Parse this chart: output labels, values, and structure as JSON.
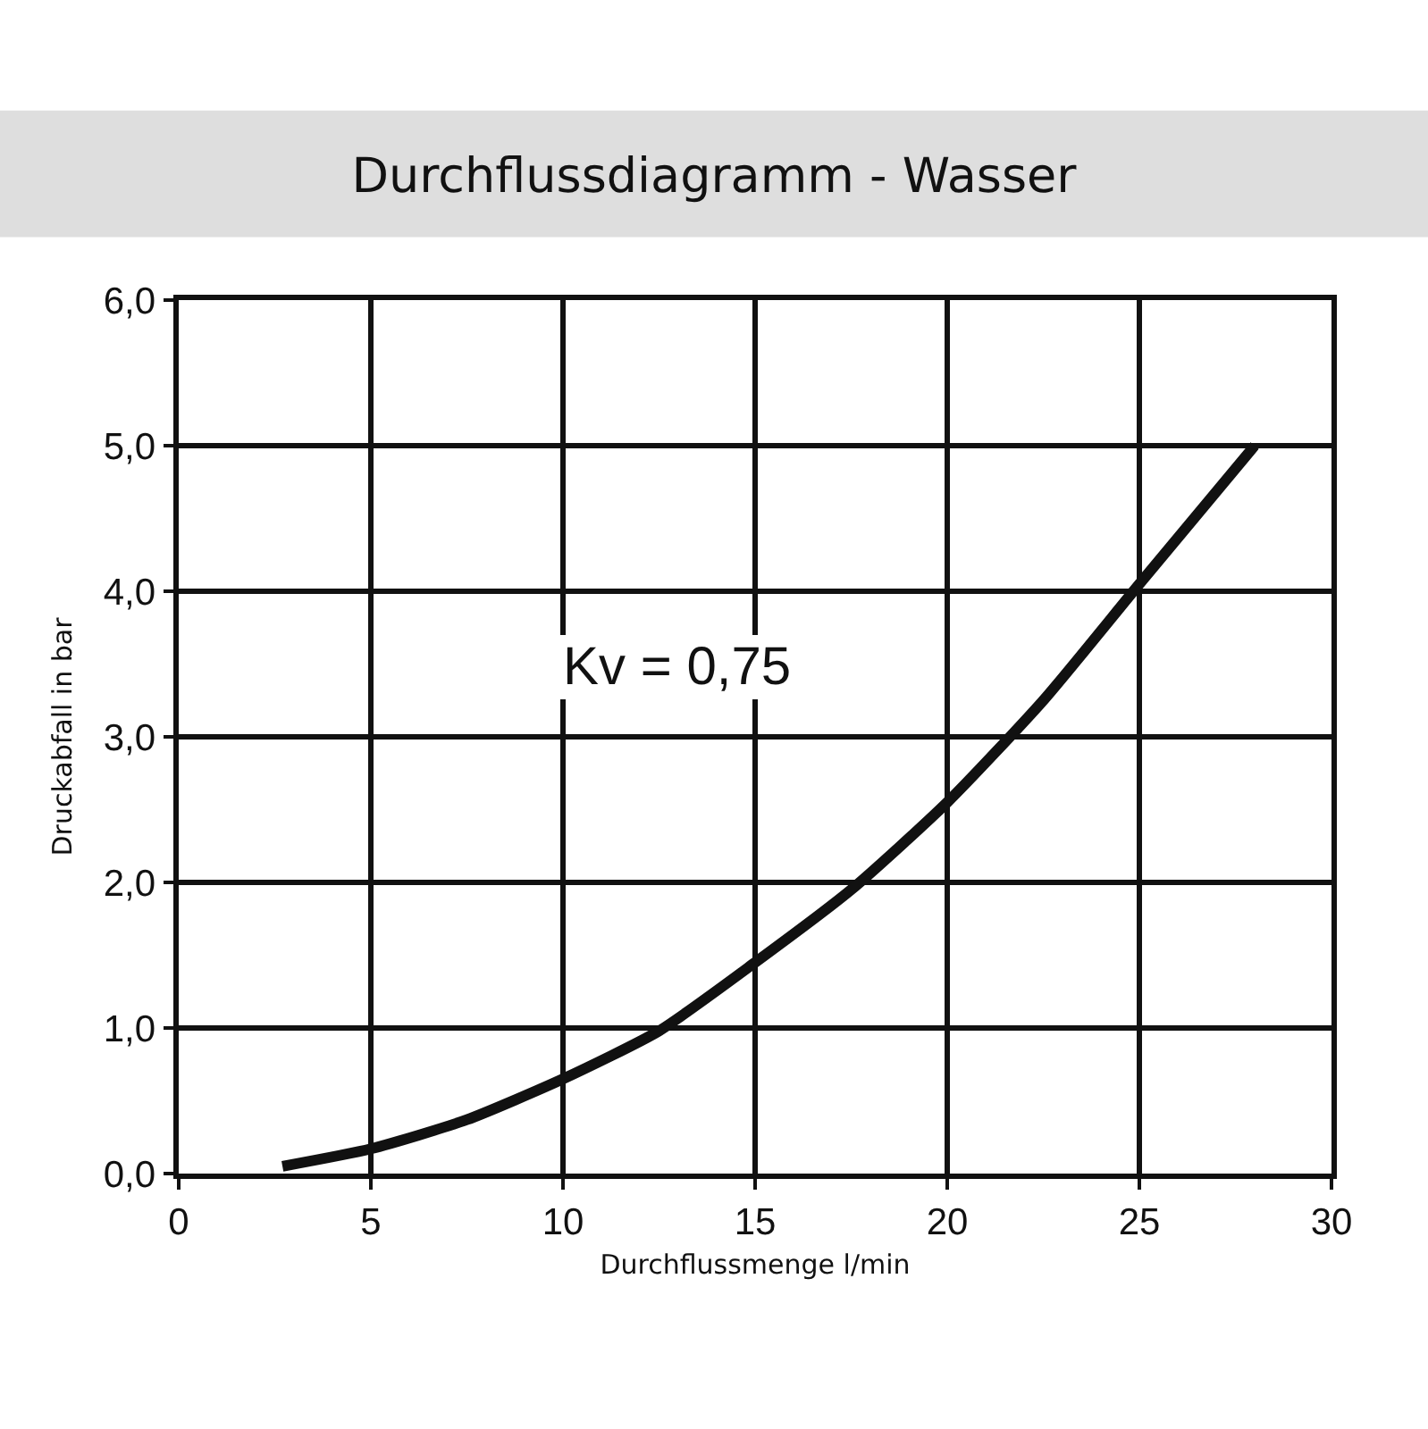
{
  "chart_data": {
    "type": "line",
    "title": "Durchflussdiagramm - Wasser",
    "xlabel": "Durchflussmenge l/min",
    "ylabel": "Druckabfall in bar",
    "annotations": [
      "Kv = 0,75"
    ],
    "x": [
      2.7,
      5,
      7.5,
      10,
      12.5,
      15,
      17.5,
      20,
      22.5,
      25,
      28
    ],
    "series": [
      {
        "color": "#111111",
        "values": [
          0.05,
          0.17,
          0.37,
          0.65,
          0.98,
          1.45,
          1.95,
          2.55,
          3.25,
          4.05,
          5.0
        ]
      }
    ],
    "xlim": [
      0,
      30
    ],
    "xticks": [
      0,
      5,
      10,
      15,
      20,
      25,
      30
    ],
    "ylim": [
      0,
      6
    ],
    "yticks": [
      {
        "value": 0,
        "label": "0,0"
      },
      {
        "value": 1,
        "label": "1,0"
      },
      {
        "value": 2,
        "label": "2,0"
      },
      {
        "value": 3,
        "label": "3,0"
      },
      {
        "value": 4,
        "label": "4,0"
      },
      {
        "value": 5,
        "label": "5,0"
      },
      {
        "value": 6,
        "label": "6,0"
      }
    ],
    "grid": true,
    "marker": "none",
    "line_style": "solid"
  }
}
